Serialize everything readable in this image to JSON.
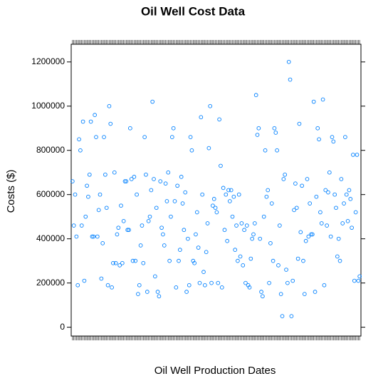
{
  "chart_data": {
    "type": "scatter",
    "title": "Oil Well Cost Data",
    "x_label": "Oil Well Production Dates",
    "y_label": "Costs ($)",
    "color": "#0080ff",
    "x": [
      1,
      2,
      3,
      4,
      5,
      6,
      7,
      8,
      9,
      10,
      11,
      12,
      13,
      14,
      15,
      16,
      17,
      18,
      19,
      20,
      21,
      22,
      23,
      24,
      25,
      26,
      27,
      28,
      29,
      30,
      31,
      32,
      33,
      34,
      35,
      36,
      37,
      38,
      39,
      40,
      41,
      42,
      43,
      44,
      45,
      46,
      47,
      48,
      49,
      50,
      51,
      52,
      53,
      54,
      55,
      56,
      57,
      58,
      59,
      60,
      61,
      62,
      63,
      64,
      65,
      66,
      67,
      68,
      69,
      70,
      71,
      72,
      73,
      74,
      75,
      76,
      77,
      78,
      79,
      80,
      81,
      82,
      83,
      84,
      85,
      86,
      87,
      88,
      89,
      90,
      91,
      92,
      93,
      94,
      95,
      96,
      97,
      98,
      99,
      100,
      101,
      102,
      103,
      104,
      105,
      106,
      107,
      108,
      109,
      110,
      111,
      112,
      113,
      114,
      115,
      116,
      117,
      118,
      119,
      120,
      121,
      122,
      123,
      124,
      125,
      126,
      127,
      128,
      129,
      130,
      131,
      132,
      133,
      134,
      135,
      136,
      137,
      138,
      139,
      140,
      141,
      142,
      143,
      144,
      145,
      146,
      147,
      148,
      149,
      150,
      151,
      152,
      153,
      154,
      155,
      156,
      157,
      158,
      159,
      160,
      161,
      162,
      163,
      164,
      165,
      166,
      167,
      168,
      169,
      170,
      171,
      172,
      173,
      174,
      175,
      176,
      177,
      178,
      179,
      180,
      181,
      182,
      183,
      184,
      185,
      186,
      187,
      188,
      189,
      190,
      191,
      192,
      193,
      194,
      195,
      196,
      197,
      198,
      199,
      200,
      201,
      202,
      203,
      204,
      205,
      206,
      207,
      208,
      209,
      210,
      211,
      212,
      213,
      214,
      215,
      216,
      217,
      218,
      219,
      220
    ],
    "values": [
      660000,
      460000,
      600000,
      410000,
      190000,
      850000,
      800000,
      460000,
      930000,
      210000,
      500000,
      640000,
      590000,
      690000,
      930000,
      410000,
      410000,
      960000,
      860000,
      410000,
      530000,
      600000,
      220000,
      380000,
      860000,
      690000,
      540000,
      190000,
      1000000,
      920000,
      180000,
      290000,
      700000,
      290000,
      420000,
      450000,
      280000,
      550000,
      290000,
      480000,
      660000,
      660000,
      440000,
      440000,
      900000,
      670000,
      300000,
      680000,
      300000,
      600000,
      150000,
      190000,
      370000,
      460000,
      290000,
      860000,
      690000,
      160000,
      480000,
      500000,
      620000,
      1020000,
      670000,
      230000,
      540000,
      160000,
      140000,
      660000,
      450000,
      420000,
      370000,
      650000,
      570000,
      700000,
      300000,
      500000,
      860000,
      900000,
      570000,
      180000,
      640000,
      300000,
      350000,
      680000,
      560000,
      440000,
      610000,
      160000,
      400000,
      190000,
      860000,
      800000,
      300000,
      290000,
      420000,
      520000,
      360000,
      200000,
      950000,
      600000,
      250000,
      190000,
      340000,
      470000,
      810000,
      1000000,
      200000,
      550000,
      580000,
      540000,
      520000,
      200000,
      940000,
      730000,
      180000,
      630000,
      440000,
      600000,
      390000,
      620000,
      570000,
      620000,
      500000,
      590000,
      350000,
      460000,
      300000,
      600000,
      320000,
      470000,
      280000,
      440000,
      200000,
      460000,
      190000,
      180000,
      310000,
      400000,
      420000,
      470000,
      1050000,
      870000,
      900000,
      400000,
      160000,
      140000,
      500000,
      800000,
      590000,
      620000,
      200000,
      380000,
      560000,
      300000,
      900000,
      880000,
      800000,
      280000,
      460000,
      150000,
      50000,
      670000,
      690000,
      260000,
      200000,
      1200000,
      1120000,
      50000,
      210000,
      530000,
      650000,
      540000,
      310000,
      920000,
      430000,
      640000,
      300000,
      150000,
      390000,
      670000,
      410000,
      560000,
      420000,
      420000,
      1020000,
      160000,
      590000,
      900000,
      850000,
      520000,
      470000,
      1030000,
      190000,
      620000,
      460000,
      610000,
      700000,
      410000,
      860000,
      840000,
      600000,
      540000,
      320000,
      400000,
      300000,
      670000,
      470000,
      560000,
      860000,
      600000,
      480000,
      620000,
      580000,
      450000,
      780000,
      210000,
      520000,
      780000,
      210000,
      230000
    ],
    "xlim": [
      0,
      221
    ],
    "ylim": [
      -40000,
      1280000
    ],
    "yticks": [
      0,
      200000,
      400000,
      600000,
      800000,
      1000000,
      1200000
    ]
  }
}
